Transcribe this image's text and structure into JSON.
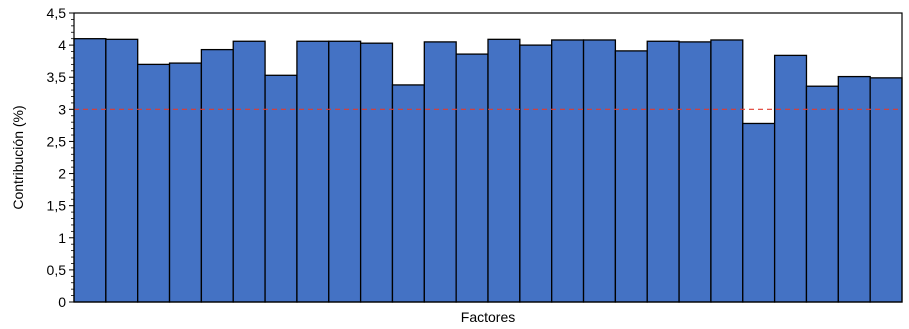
{
  "chart_data": {
    "type": "bar",
    "title": "",
    "xlabel": "Factores",
    "ylabel": "Contribución (%)",
    "ylim": [
      0,
      4.5
    ],
    "y_ticks": [
      "0",
      "0,5",
      "1",
      "1,5",
      "2",
      "2,5",
      "3",
      "3,5",
      "4",
      "4,5"
    ],
    "grid": false,
    "legend": "none",
    "bar_color": "#4472C4",
    "bar_edge_color": "#000000",
    "reference_line": {
      "y": 3.0,
      "color": "#e03c31",
      "style": "dashed"
    },
    "values": [
      4.1,
      4.09,
      3.7,
      3.72,
      3.93,
      4.06,
      3.53,
      4.06,
      4.06,
      4.03,
      3.38,
      4.05,
      3.86,
      4.09,
      4.0,
      4.08,
      4.08,
      3.91,
      4.06,
      4.05,
      4.08,
      2.78,
      3.84,
      3.36,
      3.51,
      3.49
    ]
  }
}
